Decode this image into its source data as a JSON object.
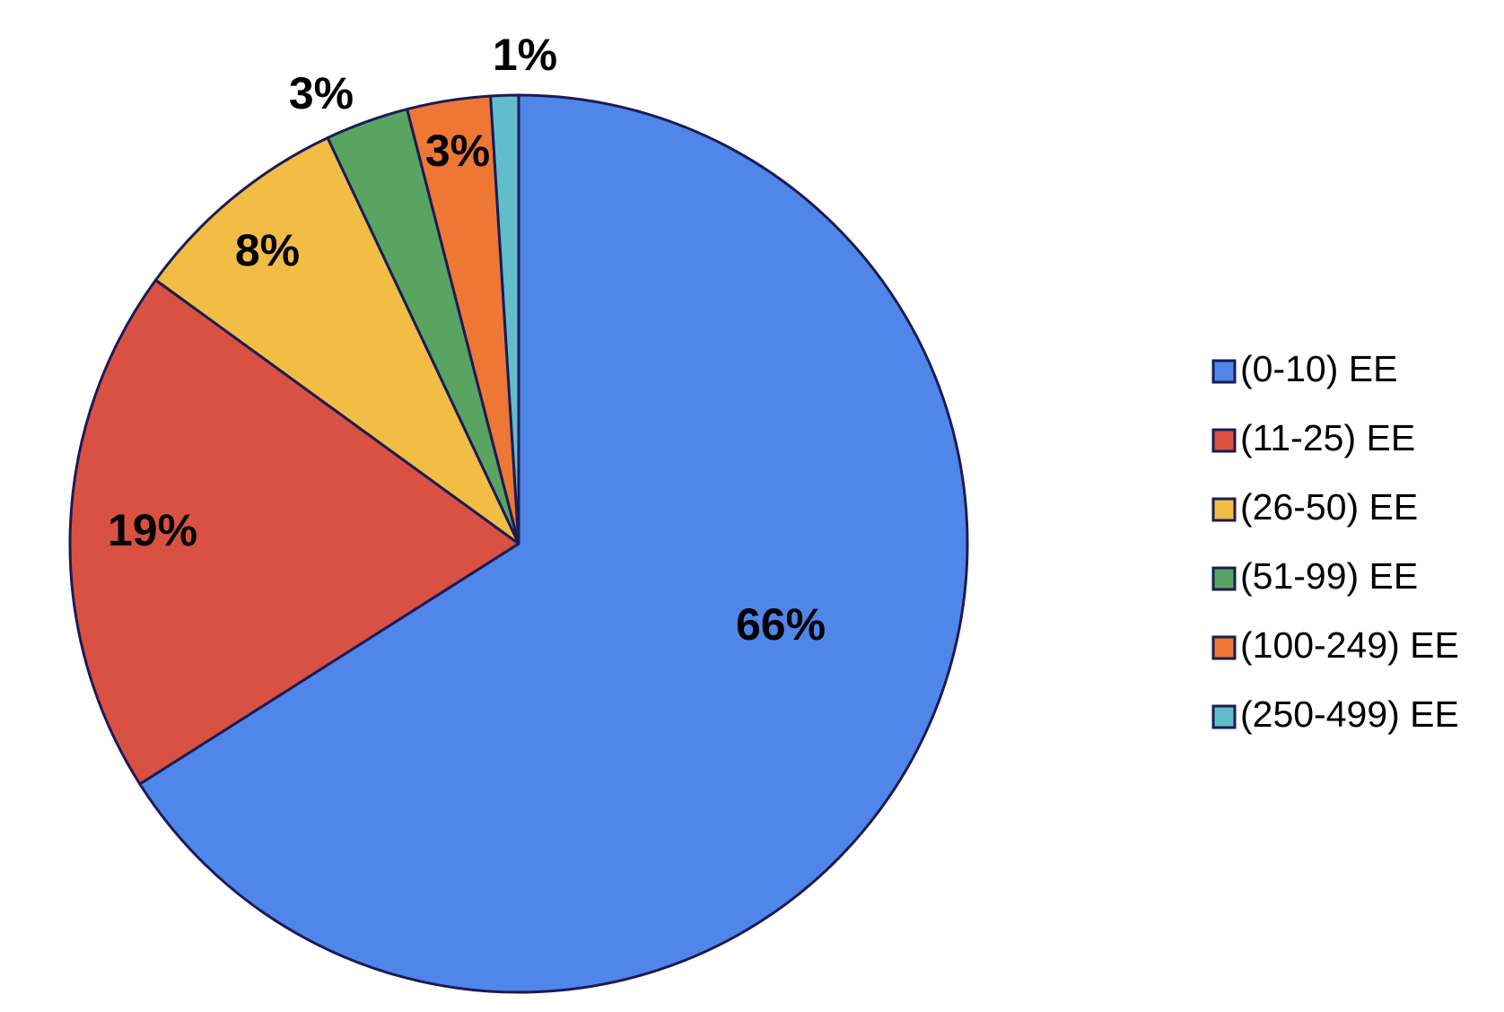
{
  "chart_data": {
    "type": "pie",
    "title": "",
    "slices": [
      {
        "label": "(0-10) EE",
        "value": 66,
        "data_label": "66%",
        "color": "#5086EA"
      },
      {
        "label": "(11-25) EE",
        "value": 19,
        "data_label": "19%",
        "color": "#D95142"
      },
      {
        "label": "(26-50) EE",
        "value": 8,
        "data_label": "8%",
        "color": "#F2BD45"
      },
      {
        "label": "(51-99) EE",
        "value": 3,
        "data_label": "3%",
        "color": "#5AA462"
      },
      {
        "label": "(100-249) EE",
        "value": 3,
        "data_label": "3%",
        "color": "#EE7735"
      },
      {
        "label": "(250-499) EE",
        "value": 1,
        "data_label": "1%",
        "color": "#62BDCB"
      }
    ],
    "start_angle": "12 o'clock",
    "direction": "clockwise",
    "legend_position": "right"
  }
}
